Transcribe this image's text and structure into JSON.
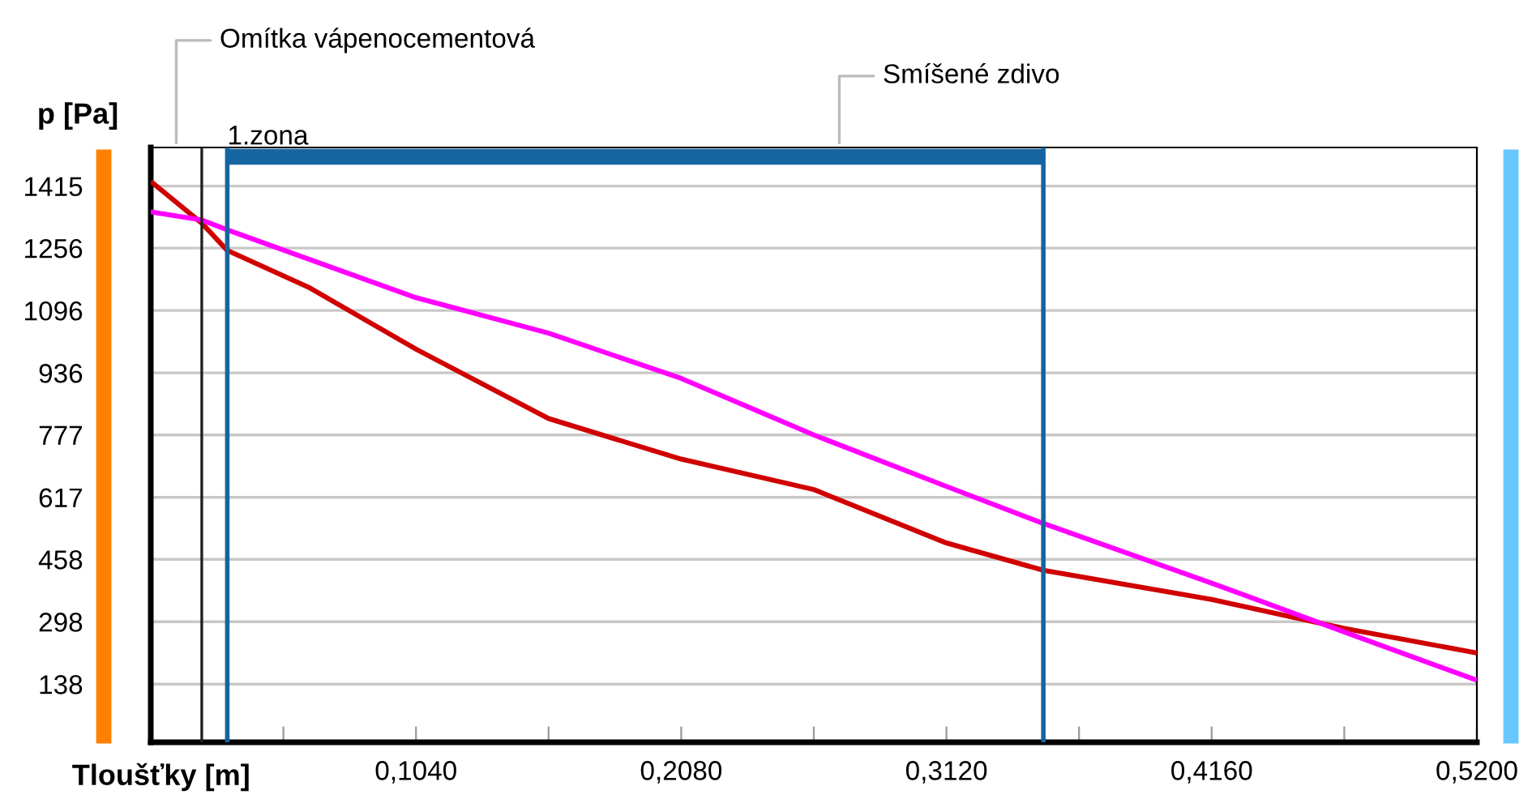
{
  "chart_data": {
    "type": "line",
    "xlabel": "Tloušťky [m]",
    "ylabel": "p [Pa]",
    "xlim": [
      0,
      0.52
    ],
    "ylim": [
      -11,
      1514
    ],
    "xticks": [
      {
        "value": 0.052,
        "label": null
      },
      {
        "value": 0.104,
        "label": "0,1040"
      },
      {
        "value": 0.156,
        "label": null
      },
      {
        "value": 0.208,
        "label": "0,2080"
      },
      {
        "value": 0.26,
        "label": null
      },
      {
        "value": 0.312,
        "label": "0,3120"
      },
      {
        "value": 0.364,
        "label": null
      },
      {
        "value": 0.416,
        "label": "0,4160"
      },
      {
        "value": 0.468,
        "label": null
      },
      {
        "value": 0.52,
        "label": "0,5200"
      }
    ],
    "yticks": [
      138,
      298,
      458,
      617,
      777,
      936,
      1096,
      1256,
      1415
    ],
    "grid": "y",
    "legend": false,
    "line_style": "solid",
    "marker": "none",
    "series": [
      {
        "color": "#d00000",
        "x": [
          0,
          0.02,
          0.03,
          0.0624,
          0.104,
          0.156,
          0.208,
          0.26,
          0.312,
          0.35,
          0.416,
          0.468,
          0.52
        ],
        "values": [
          1427,
          1320,
          1250,
          1154,
          997,
          819,
          715,
          637,
          500,
          430,
          355,
          281,
          218
        ]
      },
      {
        "color": "#ff00ff",
        "x": [
          0,
          0.02,
          0.03,
          0.104,
          0.156,
          0.208,
          0.26,
          0.312,
          0.35,
          0.416,
          0.468,
          0.52
        ],
        "values": [
          1349,
          1328,
          1303,
          1129,
          1038,
          922,
          777,
          645,
          550,
          397,
          272,
          148
        ]
      },
      {
        "color": "#1565a0",
        "x": [
          0.03,
          0.35
        ],
        "values": [
          1490,
          1490
        ]
      }
    ],
    "annotations": [
      {
        "text": "1.zona",
        "x": 0.03,
        "y": 1490
      }
    ],
    "ref_lines": [
      {
        "axis": "x",
        "value": 0.02,
        "label": "Omítka vápenocementová",
        "color": "#202020"
      },
      {
        "axis": "x",
        "value": 0.03,
        "label": null,
        "color": "#1565a0"
      },
      {
        "axis": "x",
        "value": 0.35,
        "label": "Smíšené zdivo",
        "color": "#1565a0"
      }
    ]
  }
}
